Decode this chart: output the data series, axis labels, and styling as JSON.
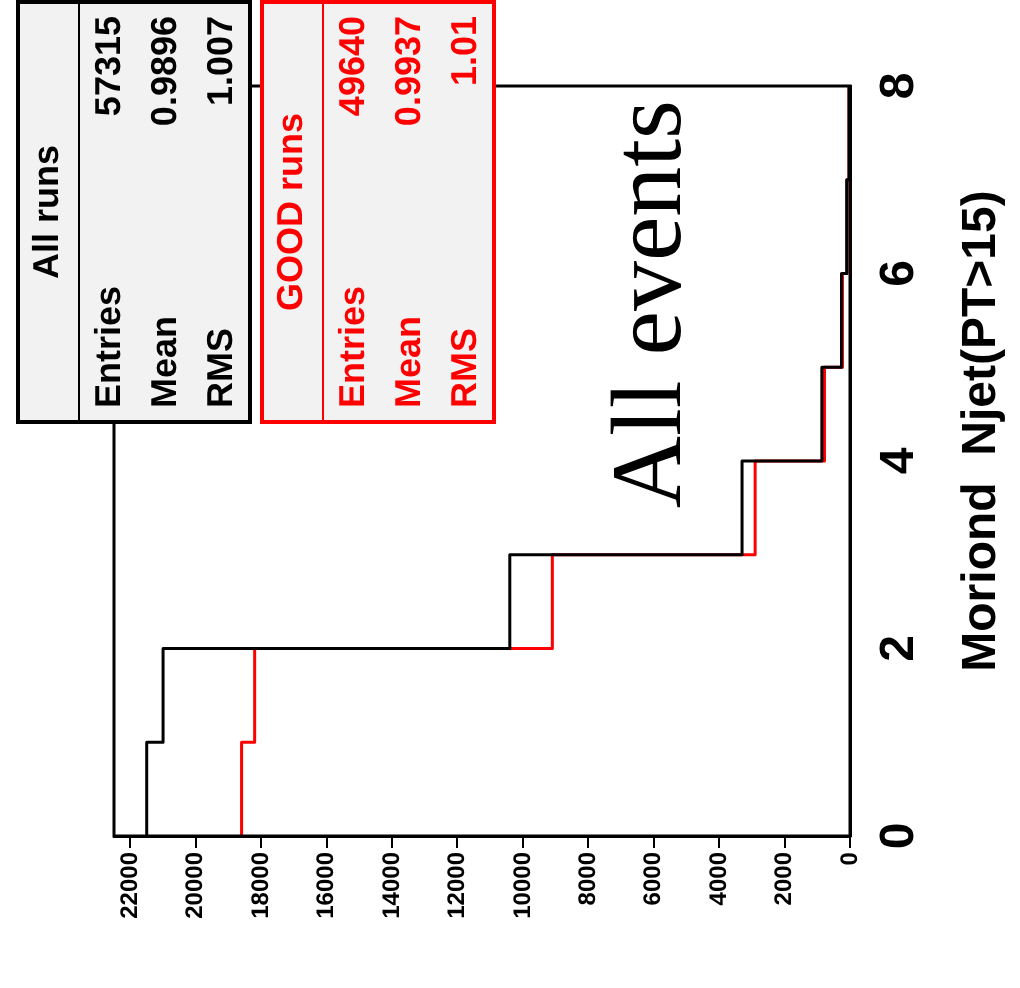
{
  "chart_data": {
    "type": "histogram",
    "orientation": "horizontal",
    "ylabel": "Moriond  Njet(PT>15)",
    "bins": [
      0,
      1,
      2,
      3,
      4,
      5,
      6,
      7,
      8
    ],
    "series": [
      {
        "name": "All runs",
        "color": "#000000",
        "values": [
          21500,
          21000,
          10400,
          3300,
          860,
          260,
          100,
          30
        ]
      },
      {
        "name": "GOOD runs",
        "color": "#ff0000",
        "values": [
          18600,
          18200,
          9100,
          2900,
          780,
          230,
          90,
          30
        ]
      }
    ],
    "ylim": [
      0,
      8
    ],
    "yticks": [
      0,
      2,
      4,
      6,
      8
    ],
    "xlim": [
      22500,
      0
    ],
    "xticks": [
      22000,
      20000,
      18000,
      16000,
      14000,
      12000,
      10000,
      8000,
      6000,
      4000,
      2000,
      0
    ],
    "grid": false,
    "legend": "top left",
    "annotations": [
      "All events",
      "Entries",
      "57315",
      "Mean",
      "0.9896",
      "RMS",
      "1.007",
      "Entries",
      "49640",
      "Mean",
      "0.9937",
      "RMS",
      "1.01"
    ]
  }
}
